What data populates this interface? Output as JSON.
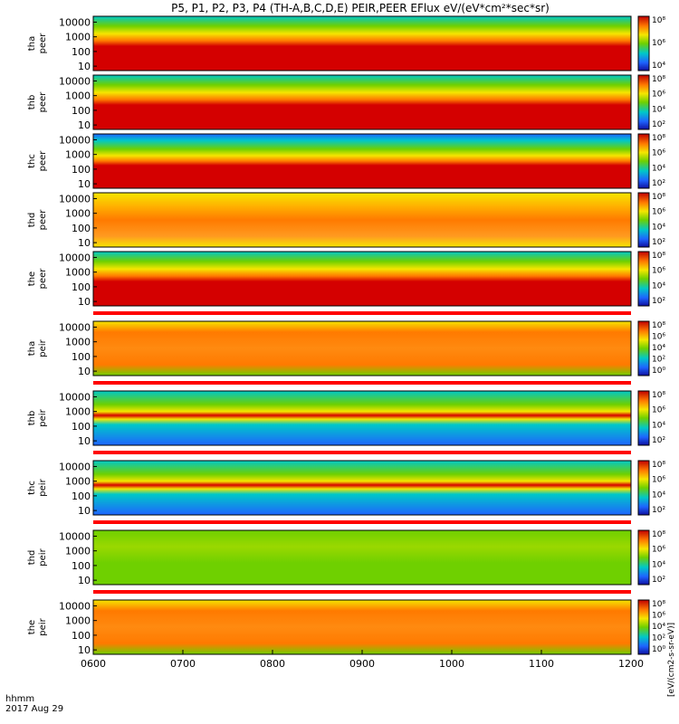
{
  "title": "P5, P1, P2, P3, P4 (TH-A,B,C,D,E) PEIR,PEER EFlux eV/(eV*cm²*sec*sr)",
  "chart_data": {
    "type": "heatmap",
    "title": "P5, P1, P2, P3, P4 (TH-A,B,C,D,E) PEIR,PEER EFlux eV/(eV*cm²*sec*sr)",
    "x_label_line1": "hhmm",
    "x_label_line2": "2017 Aug 29",
    "x_ticks": [
      "0600",
      "0700",
      "0800",
      "0900",
      "1000",
      "1100",
      "1200"
    ],
    "x_range_hours": [
      6,
      12
    ],
    "y_scale": "log",
    "y_ticks": [
      "10",
      "100",
      "1000",
      "10000"
    ],
    "y_range_eV": [
      5,
      25000
    ],
    "colorbar_scale": "log",
    "colorbar_ticks": [
      "10⁰",
      "10²",
      "10⁴",
      "10⁶",
      "10⁸"
    ],
    "colorbar_label": "[eV/(cm2-s-sr-eV)]",
    "panels": [
      {
        "probe": "tha",
        "species": "peer",
        "colorbar_ticks": [
          "10⁴",
          "10⁶",
          "10⁸"
        ]
      },
      {
        "probe": "thb",
        "species": "peer",
        "colorbar_ticks": [
          "10²",
          "10⁴",
          "10⁶",
          "10⁸"
        ]
      },
      {
        "probe": "thc",
        "species": "peer",
        "colorbar_ticks": [
          "10²",
          "10⁴",
          "10⁶",
          "10⁸"
        ]
      },
      {
        "probe": "thd",
        "species": "peer",
        "colorbar_ticks": [
          "10²",
          "10⁴",
          "10⁶",
          "10⁸"
        ]
      },
      {
        "probe": "the",
        "species": "peer",
        "colorbar_ticks": [
          "10²",
          "10⁴",
          "10⁶",
          "10⁸"
        ]
      },
      {
        "probe": "tha",
        "species": "peir",
        "colorbar_ticks": [
          "10⁰",
          "10²",
          "10⁴",
          "10⁶",
          "10⁸"
        ]
      },
      {
        "probe": "thb",
        "species": "peir",
        "colorbar_ticks": [
          "10²",
          "10⁴",
          "10⁶",
          "10⁸"
        ]
      },
      {
        "probe": "thc",
        "species": "peir",
        "colorbar_ticks": [
          "10²",
          "10⁴",
          "10⁶",
          "10⁸"
        ]
      },
      {
        "probe": "thd",
        "species": "peir",
        "colorbar_ticks": [
          "10²",
          "10⁴",
          "10⁶",
          "10⁸"
        ]
      },
      {
        "probe": "the",
        "species": "peir",
        "colorbar_ticks": [
          "10⁰",
          "10²",
          "10⁴",
          "10⁶",
          "10⁸"
        ]
      }
    ],
    "colors": {
      "red": "#d40000",
      "orange": "#ff7a00",
      "yellow": "#f5e600",
      "green": "#6fd000",
      "cyan": "#00c8c8",
      "blue": "#1e64ff",
      "black": "#000000"
    }
  }
}
